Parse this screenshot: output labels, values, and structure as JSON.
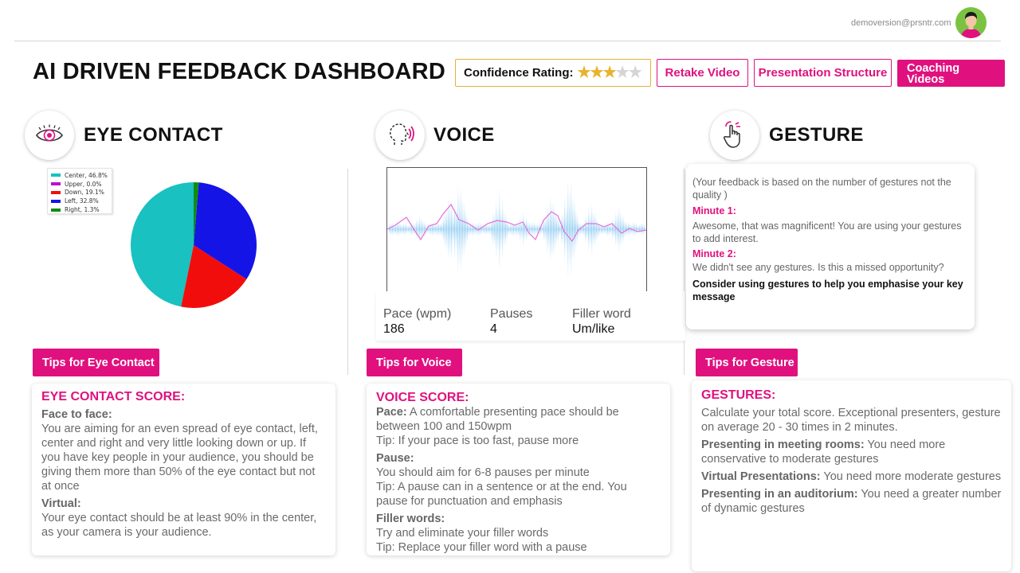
{
  "header": {
    "email": "demoversion@prsntr.com",
    "title": "AI DRIVEN FEEDBACK DASHBOARD",
    "confidence_label": "Confidence Rating:",
    "confidence_stars": 3,
    "confidence_max_stars": 5,
    "retake_label": "Retake Video",
    "structure_label": "Presentation Structure",
    "coaching_label_line1": "Coaching",
    "coaching_label_line2": "Videos"
  },
  "icons": {
    "eye": "eye-icon",
    "voice": "voice-icon",
    "gesture": "hand-gesture-icon",
    "avatar": "user-avatar-icon"
  },
  "colors": {
    "accent": "#e0117f",
    "star": "#e7b32b",
    "waveform": "#9fd3f2",
    "pitch_line": "#e66ed8"
  },
  "sections": {
    "eye": {
      "title": "EYE CONTACT",
      "tips_label": "Tips for Eye Contact"
    },
    "voice": {
      "title": "VOICE",
      "tips_label": "Tips for Voice"
    },
    "gesture": {
      "title": "GESTURE",
      "tips_label": "Tips for Gesture"
    }
  },
  "chart_data": {
    "type": "pie",
    "legend_position": "top-left",
    "slices": [
      {
        "label": "Center, 46.8%",
        "name": "Center",
        "value": 46.8,
        "color": "#19c1c1"
      },
      {
        "label": "Upper, 0.0%",
        "name": "Upper",
        "value": 0.0,
        "color": "#c10fcc"
      },
      {
        "label": "Down, 19.1%",
        "name": "Down",
        "value": 19.1,
        "color": "#f20d0d"
      },
      {
        "label": "Left, 32.8%",
        "name": "Left",
        "value": 32.8,
        "color": "#1414e6"
      },
      {
        "label": "Right, 1.3%",
        "name": "Right",
        "value": 1.3,
        "color": "#118c11"
      }
    ]
  },
  "voice_metrics": {
    "pace_label": "Pace (wpm)",
    "pace_value": "186",
    "pauses_label": "Pauses",
    "pauses_value": "4",
    "filler_label": "Filler word",
    "filler_value": "Um/like"
  },
  "gesture_feedback": {
    "note": "(Your feedback is based on the number of gestures not the quality )",
    "minute1_label": "Minute 1:",
    "minute1_text": "Awesome, that was magnificent! You are using your gestures to add interest.",
    "minute2_label": "Minute 2:",
    "minute2_text": "We didn't see any gestures. Is this a missed opportunity?",
    "advice": "Consider using gestures to help you emphasise your key message"
  },
  "eye_score": {
    "title": "EYE CONTACT SCORE:",
    "face_label": "Face to face:",
    "face_text": "You are aiming for an even spread of eye contact, left, center and right and very little looking down or up. If you have key people in your audience, you should be giving them more than 50% of the eye contact but not at once",
    "virtual_label": "Virtual:",
    "virtual_text": "Your eye contact should be at least 90% in the center, as your camera is your audience."
  },
  "voice_score": {
    "title": "VOICE SCORE:",
    "pace_label": "Pace:",
    "pace_text": " A comfortable presenting pace should be between 100 and 150wpm",
    "pace_tip": "Tip: If your pace is too fast, pause more",
    "pause_label": "Pause:",
    "pause_text": "You should aim for 6-8 pauses per minute",
    "pause_tip": "Tip: A pause can  in a sentence or at the end. You pause for punctuation and emphasis",
    "filler_label": "Filler words:",
    "filler_text": "Try and eliminate your filler words",
    "filler_tip": "Tip: Replace your filler word with a pause"
  },
  "gesture_score": {
    "title": "GESTURES:",
    "intro": "Calculate your total score. Exceptional presenters, gesture on average 20 - 30 times in 2 minutes.",
    "meeting_label": "Presenting in meeting rooms:",
    "meeting_text": " You need more conservative to moderate gestures",
    "virtual_label": "Virtual Presentations:",
    "virtual_text": " You need more moderate gestures",
    "auditorium_label": "Presenting in an auditorium:",
    "auditorium_text": " You need a greater number of dynamic gestures"
  }
}
